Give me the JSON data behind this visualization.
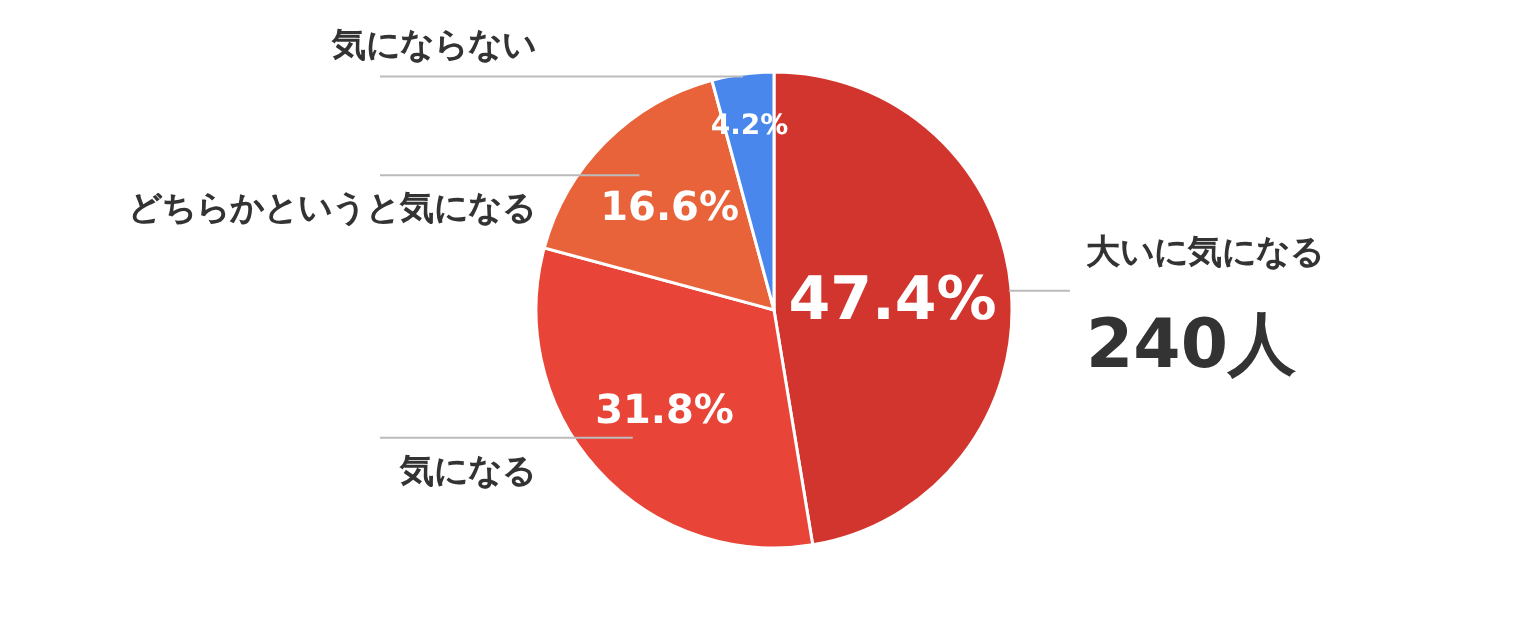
{
  "chart_data": {
    "type": "pie",
    "categories": [
      "大いに気になる",
      "気になる",
      "どちらかというと気になる",
      "気にならない"
    ],
    "values": [
      47.4,
      31.8,
      16.6,
      4.2
    ],
    "colors": [
      "#d1352d",
      "#e84438",
      "#e8633a",
      "#4a87ec"
    ],
    "value_labels": [
      "47.4%",
      "31.8%",
      "16.6%",
      "4.2%"
    ],
    "annotations": [
      "240人"
    ]
  }
}
